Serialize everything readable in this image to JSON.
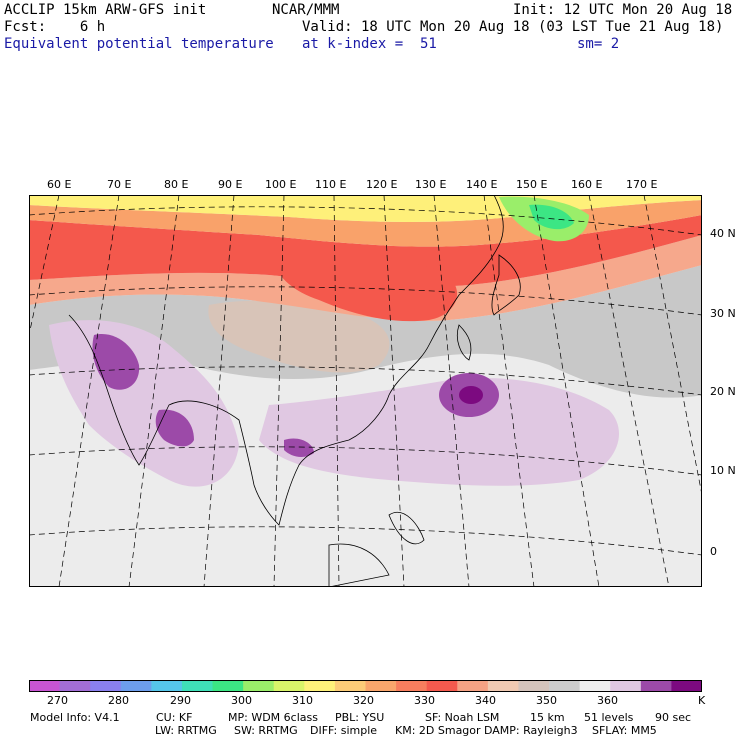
{
  "header": {
    "line1_left": "ACCLIP 15km ARW-GFS init",
    "line1_center": "NCAR/MMM",
    "line1_right": "Init: 12 UTC Mon 20 Aug 18",
    "line2_left": "Fcst:    6 h",
    "line2_right": "Valid: 18 UTC Mon 20 Aug 18 (03 LST Tue 21 Aug 18)",
    "line3_left": "Equivalent potential temperature",
    "line3_center": "at k-index =  51",
    "line3_right": "sm= 2"
  },
  "map": {
    "lon_labels": [
      "60 E",
      "70 E",
      "80 E",
      "90 E",
      "100 E",
      "110 E",
      "120 E",
      "130 E",
      "140 E",
      "150 E",
      "160 E",
      "170 E"
    ],
    "lat_labels": [
      "40 N",
      "30 N",
      "20 N",
      "10 N",
      "0"
    ]
  },
  "colorbar": {
    "colors": [
      "#c855d2",
      "#a26ed6",
      "#8a80ee",
      "#6d9eec",
      "#56c6ea",
      "#3fe0b8",
      "#3ce684",
      "#9aee6a",
      "#d8f46a",
      "#fef17a",
      "#fccc78",
      "#f9a66c",
      "#f77e5e",
      "#f45a4e",
      "#f5a284",
      "#f0cab2",
      "#d4c4bc",
      "#cccccc",
      "#eeeeee",
      "#e0c8e2",
      "#9c4aa8",
      "#7c0a80"
    ],
    "labels": [
      "270",
      "280",
      "290",
      "300",
      "310",
      "320",
      "330",
      "340",
      "350",
      "360"
    ],
    "unit": "K"
  },
  "footer": {
    "line1": [
      "Model Info: V4.1",
      "CU: KF",
      "MP: WDM 6class",
      "PBL: YSU",
      "SF: Noah LSM",
      "15 km",
      "51 levels",
      "90 sec"
    ],
    "line2": [
      "LW: RRTMG",
      "SW: RRTMG",
      "DIFF: simple",
      "KM: 2D Smagor",
      "DAMP: Rayleigh3",
      "SFLAY: MM5"
    ]
  }
}
